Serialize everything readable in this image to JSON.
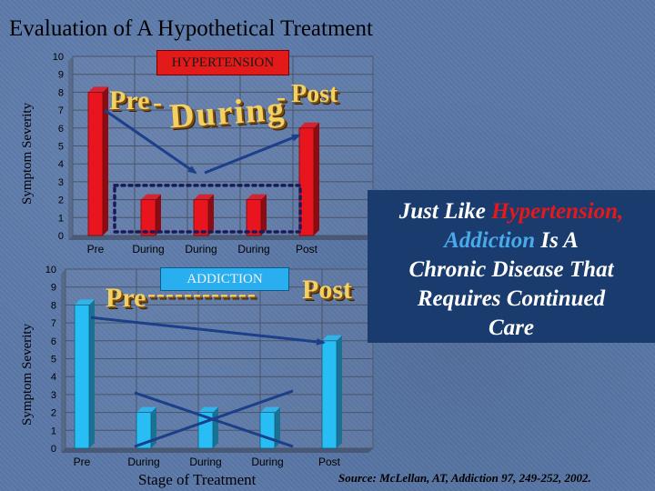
{
  "slide": {
    "title": "Evaluation of A Hypothetical Treatment",
    "source": "Source: McLellan, AT, Addiction 97, 249-252, 2002."
  },
  "callout": {
    "line1_prefix": "Just Like ",
    "line1_highlight": "Hypertension,",
    "line2_highlight": "Addiction",
    "line2_suffix": " Is A",
    "line3": "Chronic Disease That",
    "line4": "Requires Continued",
    "line5": "Care",
    "background": "#1a3b6e",
    "highlight_red": "#e21a1a",
    "highlight_blue": "#4aa9e8"
  },
  "wordart": {
    "top": {
      "pre": "Pre",
      "dash1": "-",
      "during": "During",
      "dash2": "-",
      "post": "Post"
    },
    "bottom": {
      "pre": "Pre",
      "dashes": "------------",
      "post": "Post"
    }
  },
  "chart_data": [
    {
      "type": "bar",
      "title": "HYPERTENSION",
      "ylabel": "Symptom Severity",
      "xlabel": "",
      "categories": [
        "Pre",
        "During",
        "During",
        "During",
        "Post"
      ],
      "values": [
        8,
        2,
        2,
        2,
        6
      ],
      "ylim": [
        0,
        10
      ],
      "yticks": [
        0,
        1,
        2,
        3,
        4,
        5,
        6,
        7,
        8,
        9,
        10
      ],
      "grid": true,
      "bar_color": "#e8141e",
      "annotations": [
        "dotted box around During bars",
        "arrow down from Pre to During",
        "arrow up from During to Post"
      ]
    },
    {
      "type": "bar",
      "title": "ADDICTION",
      "ylabel": "Symptom Severity",
      "xlabel": "Stage of Treatment",
      "categories": [
        "Pre",
        "During",
        "During",
        "During",
        "Post"
      ],
      "values": [
        8,
        2,
        2,
        2,
        6
      ],
      "ylim": [
        0,
        10
      ],
      "yticks": [
        0,
        1,
        2,
        3,
        4,
        5,
        6,
        7,
        8,
        9,
        10
      ],
      "grid": true,
      "bar_color": "#29bdf5",
      "annotations": [
        "crossed lines over During bars",
        "arrow from Pre to Post"
      ]
    }
  ]
}
